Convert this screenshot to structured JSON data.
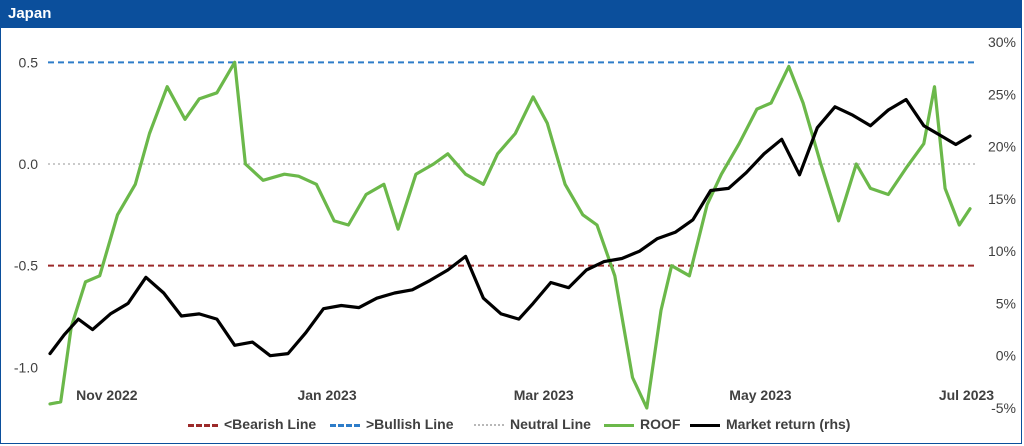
{
  "panel": {
    "title": "Japan"
  },
  "chart_data": {
    "type": "line",
    "title": "Japan",
    "x_ticks": [
      "Nov 2022",
      "Jan 2023",
      "Mar 2023",
      "May 2023",
      "Jul 2023"
    ],
    "y_left": {
      "ticks": [
        "0.5",
        "0.0",
        "-0.5",
        "-1.0"
      ],
      "range": [
        -1.2,
        0.6
      ]
    },
    "y_right": {
      "ticks": [
        "30%",
        "25%",
        "20%",
        "15%",
        "10%",
        "5%",
        "0%",
        "-5%"
      ],
      "range": [
        -5,
        30
      ]
    },
    "reference_lines": [
      {
        "name": "<Bearish Line",
        "value": -0.5,
        "color": "#9c2a2a",
        "style": "dashed"
      },
      {
        "name": ">Bullish Line",
        "value": 0.5,
        "color": "#2e7dc9",
        "style": "dashed"
      },
      {
        "name": "Neutral Line",
        "value": 0.0,
        "color": "#b8b8b8",
        "style": "dotted"
      }
    ],
    "series": [
      {
        "name": "ROOF",
        "axis": "left",
        "color": "#6bb84a",
        "x": [
          "2022-10-28",
          "2022-10-31",
          "2022-11-03",
          "2022-11-07",
          "2022-11-11",
          "2022-11-16",
          "2022-11-21",
          "2022-11-25",
          "2022-11-30",
          "2022-12-05",
          "2022-12-09",
          "2022-12-14",
          "2022-12-19",
          "2022-12-22",
          "2022-12-27",
          "2023-01-02",
          "2023-01-06",
          "2023-01-11",
          "2023-01-16",
          "2023-01-20",
          "2023-01-25",
          "2023-01-30",
          "2023-02-03",
          "2023-02-08",
          "2023-02-13",
          "2023-02-17",
          "2023-02-22",
          "2023-02-27",
          "2023-03-03",
          "2023-03-08",
          "2023-03-13",
          "2023-03-17",
          "2023-03-22",
          "2023-03-27",
          "2023-03-31",
          "2023-04-05",
          "2023-04-10",
          "2023-04-14",
          "2023-04-18",
          "2023-04-21",
          "2023-04-26",
          "2023-05-01",
          "2023-05-05",
          "2023-05-10",
          "2023-05-15",
          "2023-05-19",
          "2023-05-24",
          "2023-05-28",
          "2023-06-02",
          "2023-06-07",
          "2023-06-12",
          "2023-06-16",
          "2023-06-21",
          "2023-06-26",
          "2023-07-01",
          "2023-07-04",
          "2023-07-07",
          "2023-07-11",
          "2023-07-14"
        ],
        "y": [
          -1.18,
          -1.17,
          -0.8,
          -0.58,
          -0.55,
          -0.25,
          -0.1,
          0.15,
          0.38,
          0.22,
          0.32,
          0.35,
          0.5,
          0.0,
          -0.08,
          -0.05,
          -0.06,
          -0.1,
          -0.28,
          -0.3,
          -0.15,
          -0.1,
          -0.32,
          -0.05,
          0.0,
          0.05,
          -0.05,
          -0.1,
          0.05,
          0.15,
          0.33,
          0.2,
          -0.1,
          -0.25,
          -0.3,
          -0.55,
          -1.05,
          -1.2,
          -0.72,
          -0.5,
          -0.55,
          -0.2,
          -0.05,
          0.1,
          0.27,
          0.3,
          0.48,
          0.3,
          0.0,
          -0.28,
          0.0,
          -0.12,
          -0.15,
          -0.02,
          0.1,
          0.38,
          -0.12,
          -0.3,
          -0.22
        ]
      },
      {
        "name": "Market return (rhs)",
        "axis": "right",
        "color": "#000000",
        "x": [
          "2022-10-28",
          "2022-11-01",
          "2022-11-05",
          "2022-11-09",
          "2022-11-14",
          "2022-11-19",
          "2022-11-24",
          "2022-11-29",
          "2022-12-04",
          "2022-12-09",
          "2022-12-14",
          "2022-12-19",
          "2022-12-24",
          "2022-12-29",
          "2023-01-03",
          "2023-01-08",
          "2023-01-13",
          "2023-01-18",
          "2023-01-23",
          "2023-01-28",
          "2023-02-02",
          "2023-02-07",
          "2023-02-12",
          "2023-02-17",
          "2023-02-22",
          "2023-02-27",
          "2023-03-04",
          "2023-03-09",
          "2023-03-13",
          "2023-03-18",
          "2023-03-23",
          "2023-03-28",
          "2023-04-02",
          "2023-04-07",
          "2023-04-12",
          "2023-04-17",
          "2023-04-22",
          "2023-04-27",
          "2023-05-02",
          "2023-05-07",
          "2023-05-12",
          "2023-05-17",
          "2023-05-22",
          "2023-05-27",
          "2023-06-01",
          "2023-06-06",
          "2023-06-11",
          "2023-06-16",
          "2023-06-21",
          "2023-06-26",
          "2023-07-01",
          "2023-07-06",
          "2023-07-10",
          "2023-07-14"
        ],
        "y": [
          0.2,
          2.0,
          3.5,
          2.5,
          4.0,
          5.0,
          7.5,
          6.0,
          3.8,
          4.0,
          3.5,
          1.0,
          1.3,
          0.0,
          0.2,
          2.2,
          4.5,
          4.8,
          4.6,
          5.5,
          6.0,
          6.3,
          7.2,
          8.2,
          9.5,
          5.5,
          4.0,
          3.5,
          5.0,
          7.0,
          6.5,
          8.2,
          9.0,
          9.3,
          10.0,
          11.2,
          11.8,
          13.0,
          15.8,
          16.0,
          17.5,
          19.3,
          20.7,
          17.3,
          21.8,
          23.8,
          23.0,
          22.0,
          23.5,
          24.5,
          22.0,
          21.0,
          20.2,
          21.0
        ]
      }
    ],
    "legend": {
      "position": "bottom"
    },
    "grid": false
  }
}
